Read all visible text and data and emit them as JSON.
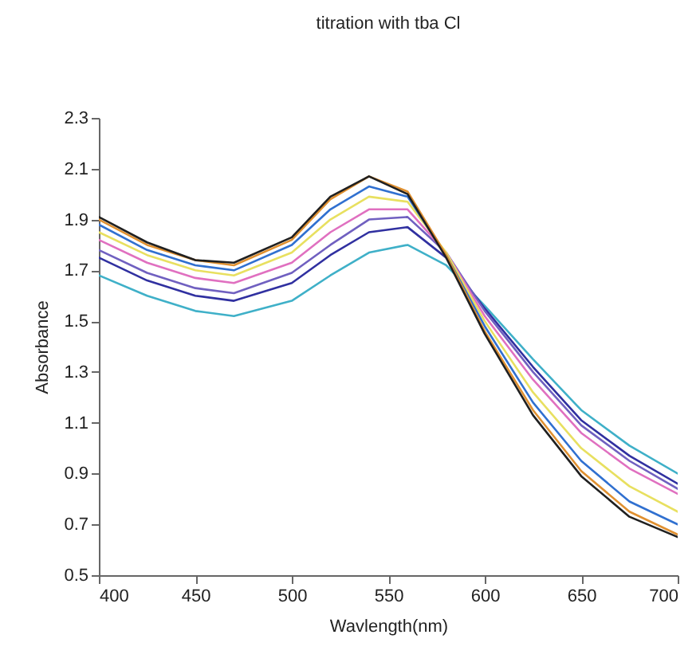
{
  "chart_data": {
    "type": "line",
    "title": "titration with tba Cl",
    "xlabel": "Wavlength(nm)",
    "ylabel": "Absorbance",
    "x": [
      400,
      425,
      450,
      470,
      500,
      520,
      540,
      560,
      580,
      600,
      625,
      650,
      675,
      700
    ],
    "xlim": [
      400,
      700
    ],
    "xticks": [
      400,
      450,
      500,
      550,
      600,
      650,
      700
    ],
    "ylim": [
      0.5,
      2.3
    ],
    "yticks": [
      0.5,
      0.7,
      0.9,
      1.1,
      1.3,
      1.5,
      1.7,
      1.9,
      2.1,
      2.3
    ],
    "grid": false,
    "legend": false,
    "marker": "none",
    "line_style": "solid",
    "series": [
      {
        "color": "#3fb0c8",
        "values": [
          1.68,
          1.6,
          1.54,
          1.52,
          1.58,
          1.68,
          1.77,
          1.8,
          1.72,
          1.56,
          1.35,
          1.15,
          1.01,
          0.9
        ]
      },
      {
        "color": "#3030a0",
        "values": [
          1.75,
          1.66,
          1.6,
          1.58,
          1.65,
          1.76,
          1.85,
          1.87,
          1.75,
          1.55,
          1.32,
          1.11,
          0.97,
          0.86
        ]
      },
      {
        "color": "#7060c0",
        "values": [
          1.78,
          1.69,
          1.63,
          1.61,
          1.69,
          1.8,
          1.9,
          1.91,
          1.77,
          1.54,
          1.3,
          1.09,
          0.95,
          0.84
        ]
      },
      {
        "color": "#e070c0",
        "values": [
          1.82,
          1.73,
          1.67,
          1.65,
          1.73,
          1.85,
          1.94,
          1.94,
          1.77,
          1.52,
          1.27,
          1.06,
          0.92,
          0.82
        ]
      },
      {
        "color": "#e8e060",
        "values": [
          1.85,
          1.76,
          1.7,
          1.68,
          1.77,
          1.9,
          1.99,
          1.97,
          1.77,
          1.5,
          1.22,
          1.0,
          0.85,
          0.75
        ]
      },
      {
        "color": "#3070d0",
        "values": [
          1.88,
          1.78,
          1.72,
          1.7,
          1.8,
          1.94,
          2.03,
          1.99,
          1.76,
          1.48,
          1.18,
          0.95,
          0.79,
          0.7
        ]
      },
      {
        "color": "#e09030",
        "values": [
          1.9,
          1.8,
          1.74,
          1.72,
          1.82,
          1.98,
          2.07,
          2.01,
          1.76,
          1.46,
          1.15,
          0.91,
          0.75,
          0.66
        ]
      },
      {
        "color": "#202020",
        "values": [
          1.91,
          1.81,
          1.74,
          1.73,
          1.83,
          1.99,
          2.07,
          2.0,
          1.75,
          1.45,
          1.13,
          0.89,
          0.73,
          0.65
        ]
      }
    ]
  }
}
